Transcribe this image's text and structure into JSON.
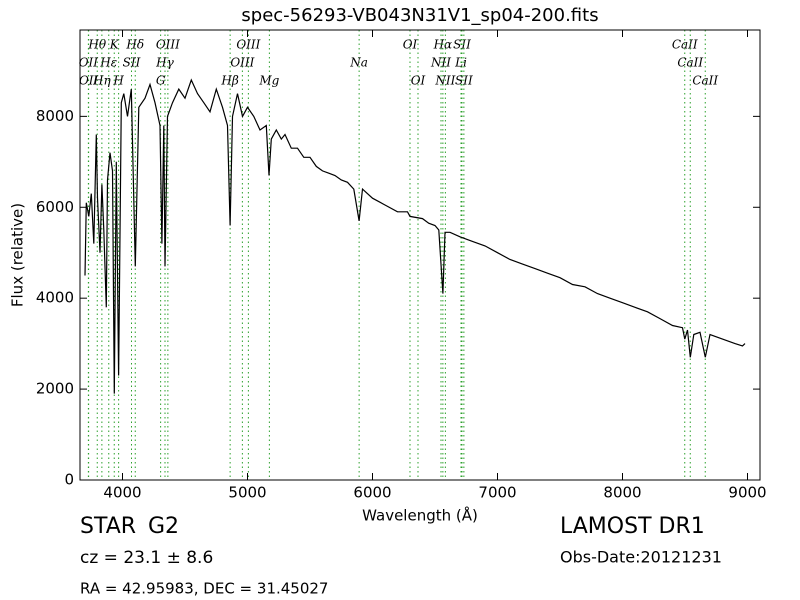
{
  "chart_data": {
    "type": "line",
    "title": "spec-56293-VB043N31V1_sp04-200.fits",
    "x_label": "Wavelength (Å)",
    "y_label": "Flux (relative)",
    "xlim": [
      3660,
      9100
    ],
    "ylim": [
      0,
      9900
    ],
    "xticks": [
      4000,
      5000,
      6000,
      7000,
      8000,
      9000
    ],
    "yticks": [
      0,
      2000,
      4000,
      6000,
      8000
    ],
    "color": "#000000",
    "line_color": "#2ca02c",
    "x": [
      3700,
      3710,
      3730,
      3750,
      3770,
      3790,
      3800,
      3820,
      3835,
      3850,
      3870,
      3880,
      3900,
      3920,
      3934,
      3950,
      3969,
      3990,
      4010,
      4040,
      4070,
      4102,
      4130,
      4180,
      4220,
      4260,
      4300,
      4315,
      4330,
      4340,
      4360,
      4400,
      4450,
      4500,
      4550,
      4600,
      4650,
      4700,
      4750,
      4800,
      4840,
      4861,
      4880,
      4920,
      4960,
      5000,
      5050,
      5100,
      5150,
      5172,
      5190,
      5230,
      5270,
      5300,
      5350,
      5400,
      5450,
      5500,
      5550,
      5600,
      5650,
      5700,
      5750,
      5800,
      5850,
      5893,
      5920,
      6000,
      6100,
      6200,
      6280,
      6300,
      6400,
      6450,
      6500,
      6530,
      6563,
      6580,
      6620,
      6700,
      6800,
      6900,
      7000,
      7100,
      7200,
      7300,
      7400,
      7500,
      7600,
      7700,
      7800,
      7900,
      8000,
      8100,
      8200,
      8300,
      8400,
      8480,
      8498,
      8520,
      8542,
      8570,
      8620,
      8662,
      8700,
      8800,
      8900,
      8960,
      8980
    ],
    "values": [
      4500,
      6100,
      5800,
      6300,
      5200,
      7600,
      6200,
      5000,
      6500,
      5500,
      3800,
      6600,
      7200,
      6800,
      1900,
      7000,
      2300,
      8300,
      8500,
      8000,
      8600,
      4700,
      8200,
      8400,
      8700,
      8300,
      7800,
      5200,
      7800,
      4700,
      8000,
      8300,
      8600,
      8400,
      8800,
      8500,
      8300,
      8100,
      8600,
      8200,
      7800,
      5600,
      8000,
      8500,
      8000,
      8200,
      8000,
      7700,
      7800,
      6700,
      7500,
      7700,
      7500,
      7600,
      7300,
      7300,
      7100,
      7100,
      6900,
      6800,
      6750,
      6700,
      6600,
      6550,
      6400,
      5700,
      6400,
      6200,
      6050,
      5900,
      5900,
      5800,
      5750,
      5650,
      5600,
      5500,
      4100,
      5450,
      5450,
      5350,
      5250,
      5150,
      5000,
      4850,
      4750,
      4650,
      4550,
      4450,
      4300,
      4250,
      4100,
      4000,
      3900,
      3800,
      3700,
      3550,
      3400,
      3350,
      3100,
      3300,
      2700,
      3200,
      3250,
      2700,
      3200,
      3100,
      3000,
      2950,
      3000
    ],
    "spectral_lines": [
      [
        {
          "label": "Hθ",
          "x": 3798
        },
        {
          "label": "K",
          "x": 3934
        },
        {
          "label": "Hδ",
          "x": 4102
        },
        {
          "label": "OIII",
          "x": 4363
        },
        {
          "label": "OIII",
          "x": 5007
        },
        {
          "label": "OI",
          "x": 6300
        },
        {
          "label": "Hα",
          "x": 6563
        },
        {
          "label": "SII",
          "x": 6716
        },
        {
          "label": "CaII",
          "x": 8498
        }
      ],
      [
        {
          "label": "OII",
          "x": 3727
        },
        {
          "label": "Hε",
          "x": 3890
        },
        {
          "label": "SII",
          "x": 4072
        },
        {
          "label": "Hγ",
          "x": 4340
        },
        {
          "label": "OIII",
          "x": 4959
        },
        {
          "label": "Na",
          "x": 5893
        },
        {
          "label": "NII",
          "x": 6548
        },
        {
          "label": "Li",
          "x": 6708
        },
        {
          "label": "CaII",
          "x": 8542
        }
      ],
      [
        {
          "label": "OII",
          "x": 3729
        },
        {
          "label": "Hη",
          "x": 3835
        },
        {
          "label": "H",
          "x": 3969
        },
        {
          "label": "G",
          "x": 4305
        },
        {
          "label": "Hβ",
          "x": 4861
        },
        {
          "label": "Mg",
          "x": 5175
        },
        {
          "label": "OI",
          "x": 6364
        },
        {
          "label": "NII",
          "x": 6583
        },
        {
          "label": "SII",
          "x": 6731
        },
        {
          "label": "CaII",
          "x": 8662
        }
      ]
    ]
  },
  "footer": {
    "class": "STAR",
    "subclass": "G2",
    "cz": "cz = 23.1 ± 8.6",
    "coords": "RA = 42.95983, DEC = 31.45027",
    "survey": "LAMOST DR1",
    "obs_date": "Obs-Date:20121231"
  }
}
